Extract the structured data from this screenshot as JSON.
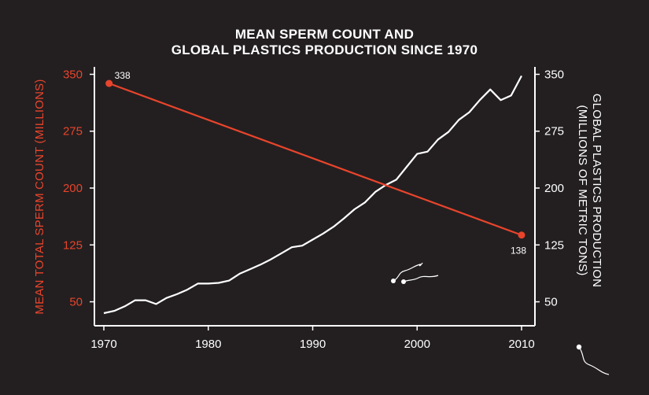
{
  "colors": {
    "background": "#231f20",
    "sperm_series": "#e8442c",
    "plastics_series": "#ffffff"
  },
  "chart_data": {
    "type": "line",
    "title": [
      "MEAN SPERM COUNT AND",
      "GLOBAL PLASTICS PRODUCTION SINCE 1970"
    ],
    "xlabel": "",
    "x_ticks": [
      "1970",
      "1980",
      "1990",
      "2000",
      "2010"
    ],
    "xlim": [
      1970,
      2010
    ],
    "y_left": {
      "label": "MEAN TOTAL SPERM COUNT (MILLIONS)",
      "ticks": [
        "350",
        "275",
        "200",
        "125",
        "50"
      ],
      "ylim": [
        35,
        365
      ]
    },
    "y_right": {
      "label_line1": "GLOBAL PLASTICS PRODUCTION",
      "label_line2": "(MILLIONS OF METRIC TONS)",
      "ticks": [
        "350",
        "275",
        "200",
        "125",
        "50"
      ],
      "ylim": [
        35,
        365
      ]
    },
    "series": [
      {
        "name": "Mean total sperm count",
        "axis": "left",
        "x": [
          1970.5,
          1970.5,
          2010
        ],
        "values": [
          338,
          338,
          138
        ],
        "point_labels": [
          "338",
          "",
          "138"
        ]
      },
      {
        "name": "Global plastics production",
        "axis": "right",
        "x": [
          1970,
          1971,
          1972,
          1973,
          1974,
          1975,
          1976,
          1977,
          1978,
          1979,
          1980,
          1981,
          1982,
          1983,
          1984,
          1985,
          1986,
          1987,
          1988,
          1989,
          1990,
          1991,
          1992,
          1993,
          1994,
          1995,
          1996,
          1997,
          1998,
          1999,
          2000,
          2001,
          2002,
          2003,
          2004,
          2005,
          2006,
          2007,
          2008,
          2009,
          2010
        ],
        "values": [
          35,
          38,
          44,
          52,
          52,
          47,
          55,
          60,
          66,
          74,
          74,
          75,
          78,
          87,
          93,
          99,
          106,
          114,
          122,
          124,
          132,
          140,
          149,
          160,
          172,
          181,
          195,
          204,
          211,
          228,
          245,
          248,
          264,
          274,
          290,
          300,
          316,
          330,
          316,
          322,
          348
        ]
      }
    ]
  }
}
